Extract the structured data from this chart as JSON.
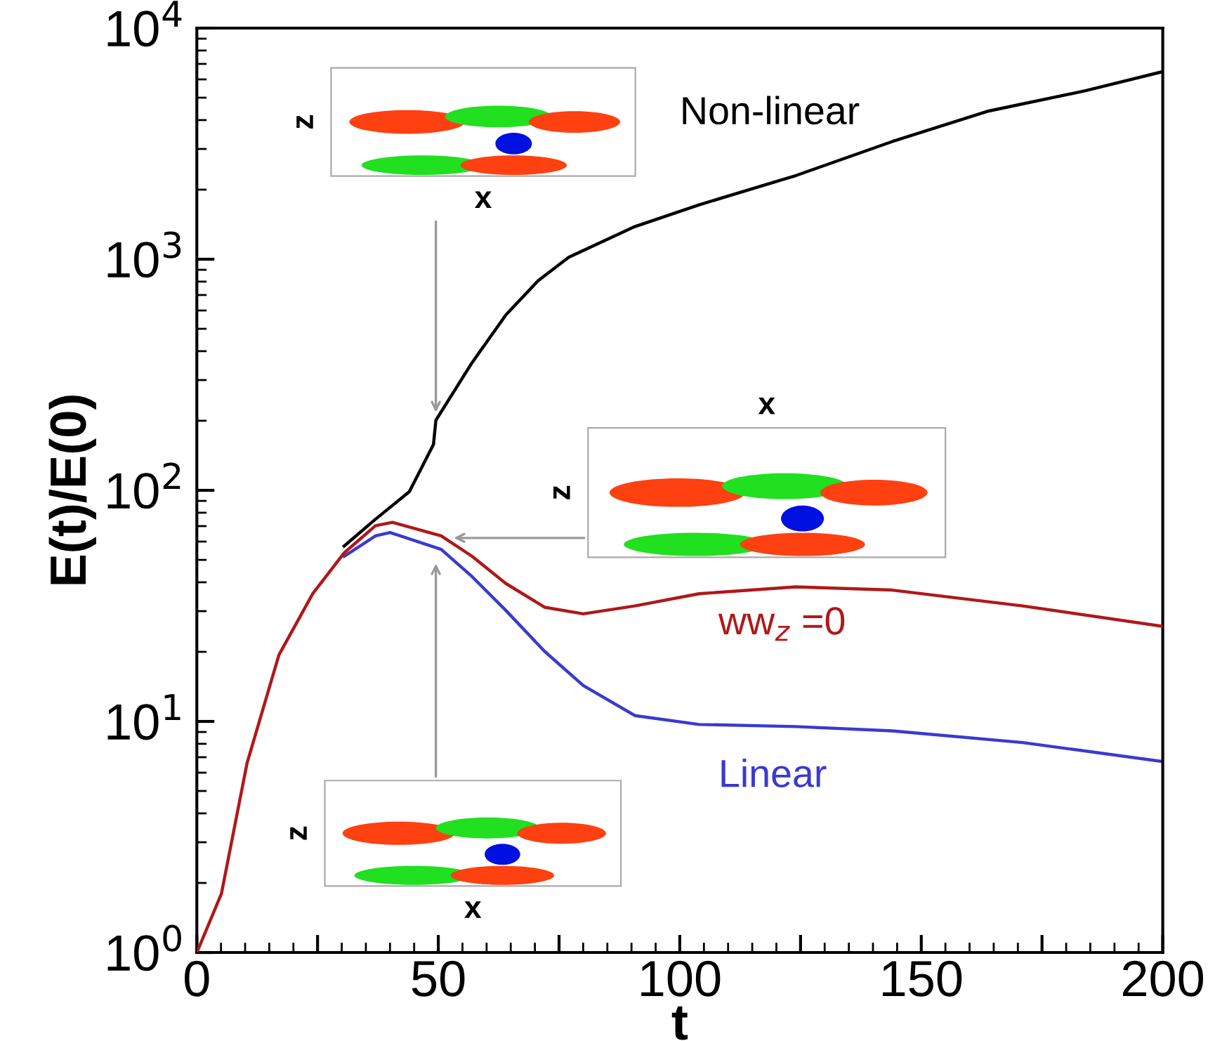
{
  "chart_data": {
    "type": "line",
    "xlabel": "t",
    "ylabel": "E(t)/E(0)",
    "log": "y",
    "xlim": [
      0,
      200
    ],
    "ylim": [
      1,
      10000
    ],
    "xticks": [
      0,
      {
        "value": 25,
        "label": null
      },
      50,
      {
        "value": 75,
        "label": null
      },
      100,
      {
        "value": 125,
        "label": null
      },
      150,
      {
        "value": 175,
        "label": null
      },
      200
    ],
    "yticks": [
      {
        "value": 1,
        "label": "10$^{0}$"
      },
      {
        "value": 10,
        "label": "10$^{1}$"
      },
      {
        "value": 100,
        "label": "10$^{2}$"
      },
      {
        "value": 1000,
        "label": "10$^{3}$"
      },
      {
        "value": 10000,
        "label": "10$^{4}$"
      }
    ],
    "grid": false,
    "legend": false,
    "marker": "none",
    "line_style": "solid",
    "annotations": [
      "z",
      "x",
      "z",
      "x",
      "z",
      "x"
    ],
    "series": [
      {
        "name": "Non-linear",
        "color": "#000000",
        "x": [
          30.5,
          37,
          44,
          49,
          49.5,
          57,
          64,
          70.6,
          77,
          90.7,
          104,
          124,
          144,
          164,
          184,
          200
        ],
        "values": [
          57.4,
          75,
          98.6,
          158,
          201,
          357,
          574,
          805,
          1020,
          1384,
          1720,
          2300,
          3230,
          4380,
          5360,
          6480
        ]
      },
      {
        "name": "ww$_{z}$ =0",
        "color": "#b01818",
        "x": [
          0,
          5.1,
          10.4,
          17,
          24,
          30.5,
          37,
          40.5,
          50.6,
          57,
          64,
          72,
          80,
          90.7,
          104,
          124,
          144,
          171,
          200
        ],
        "values": [
          1,
          1.8,
          6.6,
          19.4,
          35.7,
          53.6,
          70.3,
          72.7,
          63.5,
          51.8,
          39.5,
          31.2,
          29.2,
          31.6,
          35.7,
          38.2,
          37,
          31.6,
          25.8
        ]
      },
      {
        "name": "Linear",
        "color": "#3a3ad0",
        "x": [
          30.5,
          37,
          40,
          50.6,
          57,
          64,
          72,
          80,
          90.7,
          104,
          124,
          144,
          171,
          200
        ],
        "values": [
          51.8,
          63.5,
          65.7,
          55.5,
          42.3,
          30.2,
          20.1,
          14.3,
          10.6,
          9.7,
          9.5,
          9.1,
          8.1,
          6.7
        ]
      }
    ]
  }
}
